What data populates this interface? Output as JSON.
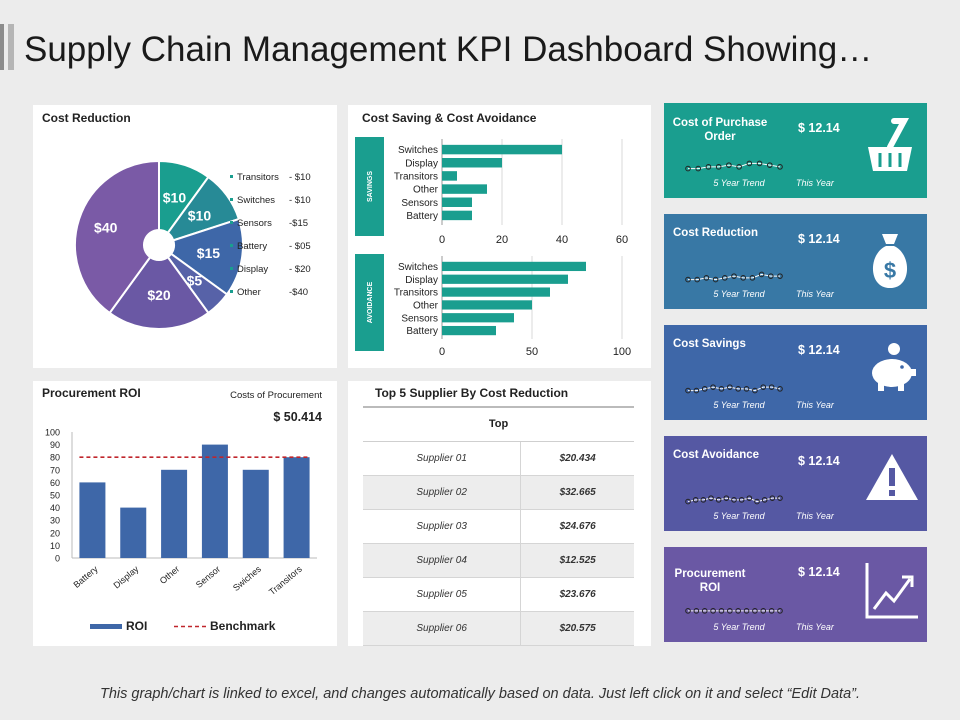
{
  "title": "Supply Chain Management KPI Dashboard Showing…",
  "footer": "This graph/chart is linked to excel, and changes automatically based on data. Just left click on it and select “Edit Data”.",
  "colors": {
    "teal": "#1a9e8f",
    "blue": "#3e67a8",
    "purple": "#6a58a4",
    "benchmark": "#c0262c"
  },
  "chart_data": [
    {
      "type": "pie",
      "title": "Cost Reduction",
      "slices": [
        {
          "label": "Transitors",
          "value": 10,
          "data_label": "$10",
          "color": "#1a9e8f"
        },
        {
          "label": "Switches",
          "value": 10,
          "data_label": "$10",
          "color": "#278a96"
        },
        {
          "label": "Sensors",
          "value": 15,
          "data_label": "$15",
          "color": "#3e67a8"
        },
        {
          "label": "Battery",
          "value": 5,
          "data_label": "$5",
          "color": "#5762a8"
        },
        {
          "label": "Display",
          "value": 20,
          "data_label": "$20",
          "color": "#6a58a4"
        },
        {
          "label": "Other",
          "value": 40,
          "data_label": "$40",
          "color": "#7a5aa6"
        }
      ],
      "legend": [
        {
          "name": "Transitors",
          "value": "- $10"
        },
        {
          "name": "Switches",
          "value": "- $10"
        },
        {
          "name": "Sensors",
          "value": "-$15"
        },
        {
          "name": "Battery",
          "value": "- $05"
        },
        {
          "name": "Display",
          "value": "- $20"
        },
        {
          "name": "Other",
          "value": "-$40"
        }
      ]
    },
    {
      "type": "bar",
      "orientation": "horizontal",
      "title": "Cost Saving & Cost Avoidance",
      "panels": [
        {
          "side_label": "SAVINGS",
          "categories": [
            "Switches",
            "Display",
            "Transitors",
            "Other",
            "Sensors",
            "Battery"
          ],
          "values": [
            40,
            20,
            5,
            15,
            10,
            10
          ],
          "xlim": [
            0,
            60
          ],
          "xticks": [
            0,
            20,
            40,
            60
          ],
          "color": "#1a9e8f"
        },
        {
          "side_label": "AVOIDANCE",
          "categories": [
            "Switches",
            "Display",
            "Transitors",
            "Other",
            "Sensors",
            "Battery"
          ],
          "values": [
            80,
            70,
            60,
            50,
            40,
            30
          ],
          "xlim": [
            0,
            100
          ],
          "xticks": [
            0,
            50,
            100
          ],
          "color": "#1a9e8f"
        }
      ]
    },
    {
      "type": "bar",
      "title": "Procurement ROI",
      "subtitle": "Costs of Procurement",
      "total": "$ 50.414",
      "categories": [
        "Battery",
        "Display",
        "Other",
        "Sensor",
        "Swiches",
        "Transitors"
      ],
      "series": [
        {
          "name": "ROI",
          "values": [
            60,
            40,
            70,
            90,
            70,
            80
          ]
        }
      ],
      "benchmark": {
        "name": "Benchmark",
        "value": 80
      },
      "ylim": [
        0,
        100
      ],
      "yticks": [
        0,
        10,
        20,
        30,
        40,
        50,
        60,
        70,
        80,
        90,
        100
      ],
      "bar_color": "#3e67a8",
      "legend": "bottom"
    },
    {
      "type": "table",
      "title": "Top 5 Supplier By Cost Reduction",
      "header": "Top",
      "rows": [
        {
          "name": "Supplier 01",
          "value": "$20.434"
        },
        {
          "name": "Supplier 02",
          "value": "$32.665"
        },
        {
          "name": "Supplier 03",
          "value": "$24.676"
        },
        {
          "name": "Supplier 04",
          "value": "$12.525"
        },
        {
          "name": "Supplier 05",
          "value": "$23.676"
        },
        {
          "name": "Supplier 06",
          "value": "$20.575"
        }
      ]
    }
  ],
  "kpis": [
    {
      "label": "Cost of Purchase Order",
      "value": "$ 12.14",
      "trend_label": "5 Year Trend",
      "period": "This Year",
      "icon": "basket-icon",
      "color": "#1a9e8f",
      "trend": [
        5,
        5,
        6,
        6,
        7,
        6,
        8,
        8,
        7,
        6
      ]
    },
    {
      "label": "Cost Reduction",
      "value": "$ 12.14",
      "trend_label": "5 Year Trend",
      "period": "This Year",
      "icon": "money-bag-icon",
      "color": "#3878a5",
      "trend": [
        5,
        5,
        6,
        5,
        6,
        7,
        6,
        6,
        8,
        7,
        7
      ]
    },
    {
      "label": "Cost Savings",
      "value": "$ 12.14",
      "trend_label": "5 Year Trend",
      "period": "This Year",
      "icon": "piggy-bank-icon",
      "color": "#3e67a8",
      "trend": [
        5,
        5,
        6,
        7,
        6,
        7,
        6,
        6,
        5,
        7,
        7,
        6
      ]
    },
    {
      "label": "Cost Avoidance",
      "value": "$ 12.14",
      "trend_label": "5 Year Trend",
      "period": "This Year",
      "icon": "warning-icon",
      "color": "#5558a3",
      "trend": [
        5,
        6,
        6,
        7,
        6,
        7,
        6,
        6,
        7,
        5,
        6,
        7,
        7
      ]
    },
    {
      "label": "Procurement ROI",
      "value": "$ 12.14",
      "trend_label": "5 Year Trend",
      "period": "This Year",
      "icon": "growth-chart-icon",
      "color": "#6a58a4",
      "trend": [
        6,
        6,
        6,
        6,
        6,
        6,
        6,
        6,
        6,
        6,
        6,
        6
      ]
    }
  ]
}
